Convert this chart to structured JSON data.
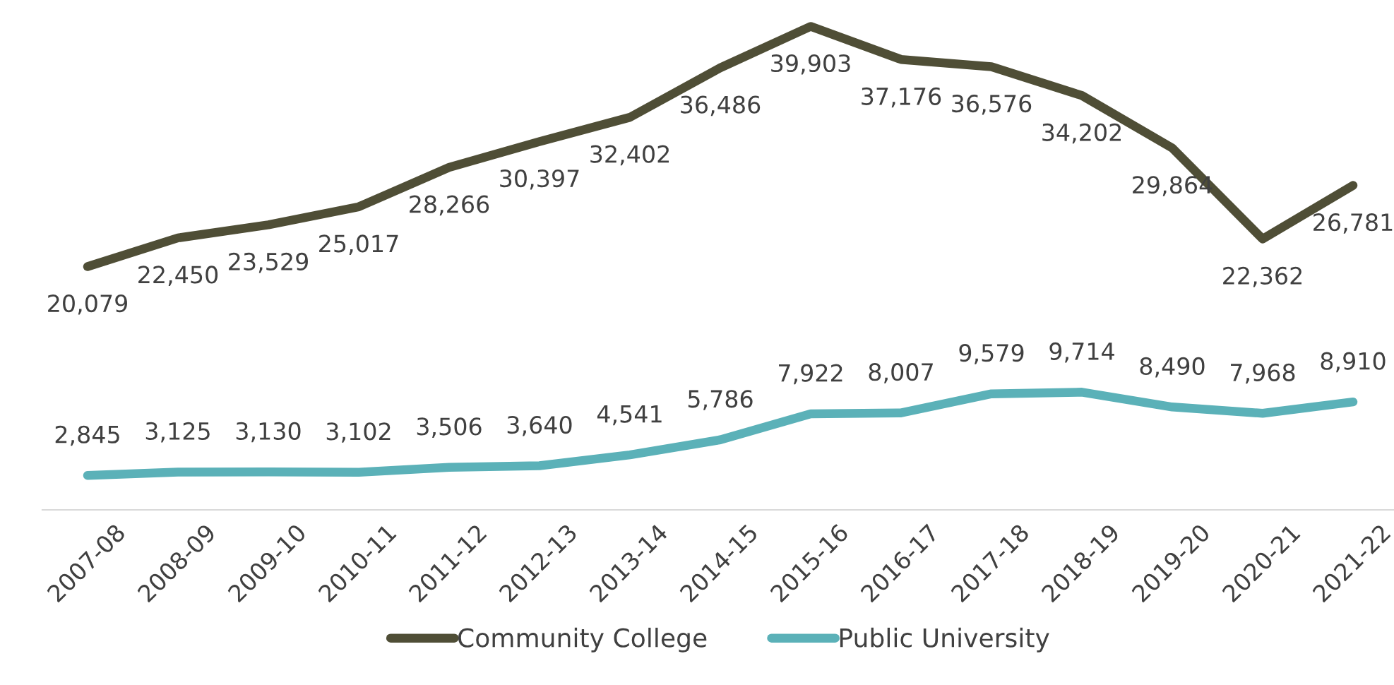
{
  "chart_data": {
    "type": "line",
    "categories": [
      "2007-08",
      "2008-09",
      "2009-10",
      "2010-11",
      "2011-12",
      "2012-13",
      "2013-14",
      "2014-15",
      "2015-16",
      "2016-17",
      "2017-18",
      "2018-19",
      "2019-20",
      "2020-21",
      "2021-22"
    ],
    "series": [
      {
        "name": "Community College",
        "color": "#4f4e36",
        "values": [
          20079,
          22450,
          23529,
          25017,
          28266,
          30397,
          32402,
          36486,
          39903,
          37176,
          36576,
          34202,
          29864,
          22362,
          26781
        ],
        "value_labels": [
          "20,079",
          "22,450",
          "23,529",
          "25,017",
          "28,266",
          "30,397",
          "32,402",
          "36,486",
          "39,903",
          "37,176",
          "36,576",
          "34,202",
          "29,864",
          "22,362",
          "26,781"
        ]
      },
      {
        "name": "Public University",
        "color": "#5bb1b8",
        "values": [
          2845,
          3125,
          3130,
          3102,
          3506,
          3640,
          4541,
          5786,
          7922,
          8007,
          9579,
          9714,
          8490,
          7968,
          8910
        ],
        "value_labels": [
          "2,845",
          "3,125",
          "3,130",
          "3,102",
          "3,506",
          "3,640",
          "4,541",
          "5,786",
          "7,922",
          "8,007",
          "9,579",
          "9,714",
          "8,490",
          "7,968",
          "8,910"
        ]
      }
    ],
    "grid": false,
    "legend": "bottom",
    "marker": "none",
    "line_style": "solid"
  }
}
